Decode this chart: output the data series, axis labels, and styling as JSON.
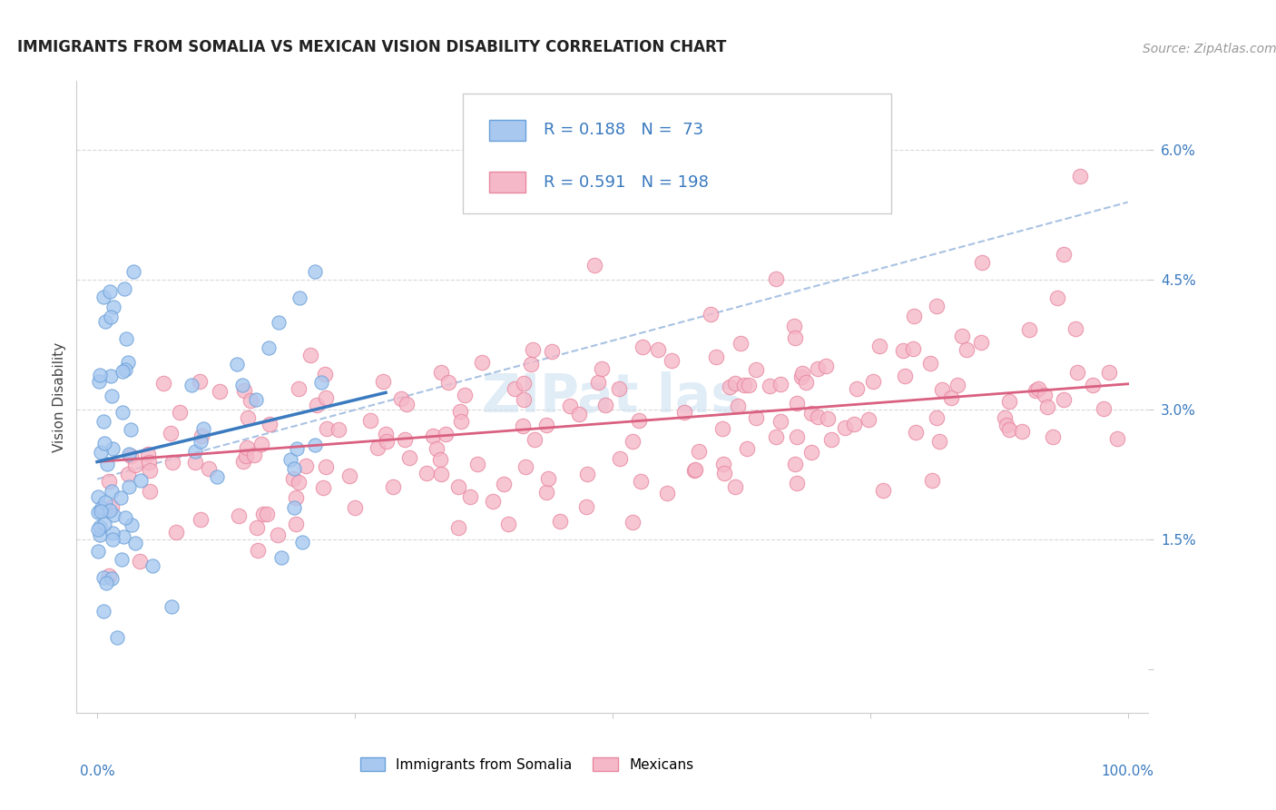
{
  "title": "IMMIGRANTS FROM SOMALIA VS MEXICAN VISION DISABILITY CORRELATION CHART",
  "source": "Source: ZipAtlas.com",
  "ylabel": "Vision Disability",
  "somalia_R": 0.188,
  "somalia_N": 73,
  "mexican_R": 0.591,
  "mexican_N": 198,
  "somalia_color": "#a8c8f0",
  "somalia_edge_color": "#6aa0d8",
  "somalia_line_color": "#3a7abf",
  "mexican_color": "#f5b8c8",
  "mexican_edge_color": "#e888a0",
  "mexican_line_color": "#d96080",
  "dashed_line_color": "#a0bce0",
  "watermark_color": "#c8ddf0",
  "title_fontsize": 12,
  "axis_label_fontsize": 11,
  "tick_label_fontsize": 11,
  "legend_fontsize": 13,
  "source_fontsize": 10,
  "background_color": "#ffffff",
  "grid_color": "#d0d0d0",
  "blue_text_color": "#3a7abf",
  "yticks": [
    0.0,
    0.015,
    0.03,
    0.045,
    0.06
  ],
  "ytick_labels": [
    "",
    "1.5%",
    "3.0%",
    "4.5%",
    "6.0%"
  ],
  "xlim": [
    -0.02,
    1.02
  ],
  "ylim": [
    -0.005,
    0.068
  ]
}
